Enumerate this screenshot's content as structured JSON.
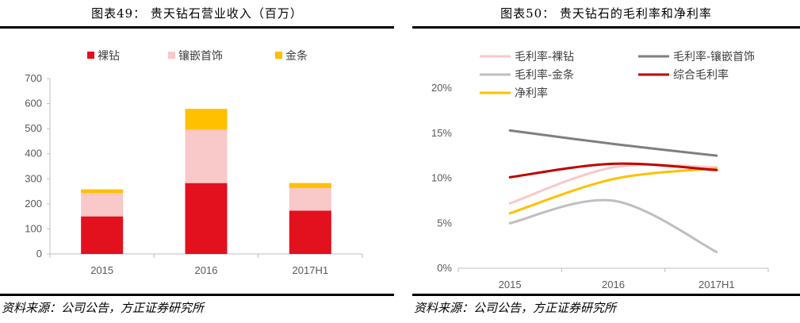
{
  "left": {
    "title": "图表49：  贵天钻石营业收入（百万）",
    "source": "资料来源：公司公告，方正证券研究所",
    "chart_data": {
      "type": "bar",
      "stacked": true,
      "title": "贵天钻石营业收入（百万）",
      "categories": [
        "2015",
        "2016",
        "2017H1"
      ],
      "series": [
        {
          "name": "裸钻",
          "color": "#e3101e",
          "values": [
            150,
            283,
            173
          ]
        },
        {
          "name": "镶嵌首饰",
          "color": "#f9c8c8",
          "values": [
            93,
            213,
            90
          ]
        },
        {
          "name": "金条",
          "color": "#ffc000",
          "values": [
            15,
            83,
            20
          ]
        }
      ],
      "ylim": [
        0,
        700
      ],
      "yticks": [
        "0",
        "100",
        "200",
        "300",
        "400",
        "500",
        "600",
        "700"
      ],
      "legend_position": "top"
    }
  },
  "right": {
    "title": "图表50：  贵天钻石的毛利率和净利率",
    "source": "资料来源：公司公告，方正证券研究所",
    "chart_data": {
      "type": "line",
      "title": "贵天钻石的毛利率和净利率",
      "categories": [
        "2015",
        "2016",
        "2017H1"
      ],
      "series": [
        {
          "name": "毛利率-裸钻",
          "color": "#f9c8c8",
          "values": [
            7.2,
            11.2,
            11.2
          ]
        },
        {
          "name": "毛利率-镶嵌首饰",
          "color": "#7f7f7f",
          "values": [
            15.3,
            13.8,
            12.5
          ]
        },
        {
          "name": "毛利率-金条",
          "color": "#bfbfbf",
          "values": [
            5.0,
            7.5,
            1.8
          ]
        },
        {
          "name": "综合毛利率",
          "color": "#c00000",
          "values": [
            10.1,
            11.6,
            10.9
          ]
        },
        {
          "name": "净利率",
          "color": "#ffc000",
          "values": [
            6.1,
            9.9,
            11.1
          ]
        }
      ],
      "ylim": [
        0,
        20
      ],
      "yticks": [
        "0%",
        "5%",
        "10%",
        "15%",
        "20%"
      ],
      "legend_position": "top"
    }
  }
}
